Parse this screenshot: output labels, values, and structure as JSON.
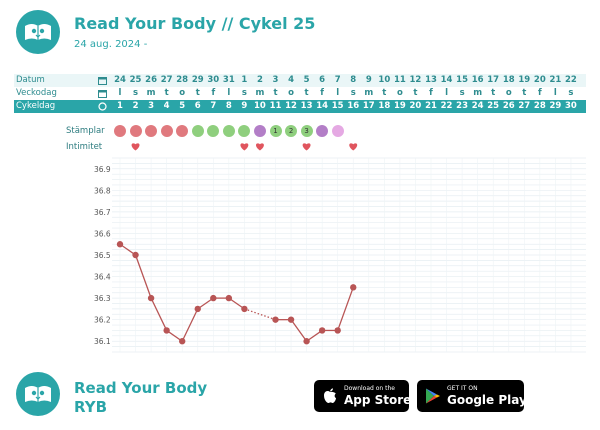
{
  "header": {
    "title": "Read Your Body // Cykel 25",
    "subtitle": "24 aug. 2024 -",
    "logo_icon": "open-book-owl-icon"
  },
  "rows": {
    "datum": {
      "label": "Datum",
      "icon": "calendar-icon",
      "values": [
        "24",
        "25",
        "26",
        "27",
        "28",
        "29",
        "30",
        "31",
        "1",
        "2",
        "3",
        "4",
        "5",
        "6",
        "7",
        "8",
        "9",
        "10",
        "11",
        "12",
        "13",
        "14",
        "15",
        "16",
        "17",
        "18",
        "19",
        "20",
        "21",
        "22"
      ]
    },
    "veckodag": {
      "label": "Veckodag",
      "icon": "calendar-icon",
      "values": [
        "l",
        "s",
        "m",
        "t",
        "o",
        "t",
        "f",
        "l",
        "s",
        "m",
        "t",
        "o",
        "t",
        "f",
        "l",
        "s",
        "m",
        "t",
        "o",
        "t",
        "f",
        "l",
        "s",
        "m",
        "t",
        "o",
        "t",
        "f",
        "l",
        "s"
      ]
    },
    "cykeldag": {
      "label": "Cykeldag",
      "icon": "circle-icon",
      "values": [
        "1",
        "2",
        "3",
        "4",
        "5",
        "6",
        "7",
        "8",
        "9",
        "10",
        "11",
        "12",
        "13",
        "14",
        "15",
        "16",
        "17",
        "18",
        "19",
        "20",
        "21",
        "22",
        "23",
        "24",
        "25",
        "26",
        "27",
        "28",
        "29",
        "30"
      ]
    }
  },
  "stamps": {
    "label": "Stämplar",
    "items": [
      {
        "day": 1,
        "color": "#e0797e",
        "text": ""
      },
      {
        "day": 2,
        "color": "#e0797e",
        "text": ""
      },
      {
        "day": 3,
        "color": "#e0797e",
        "text": ""
      },
      {
        "day": 4,
        "color": "#e0797e",
        "text": ""
      },
      {
        "day": 5,
        "color": "#e0797e",
        "text": ""
      },
      {
        "day": 6,
        "color": "#8fcf7e",
        "text": ""
      },
      {
        "day": 7,
        "color": "#8fcf7e",
        "text": ""
      },
      {
        "day": 8,
        "color": "#8fcf7e",
        "text": ""
      },
      {
        "day": 9,
        "color": "#8fcf7e",
        "text": ""
      },
      {
        "day": 10,
        "color": "#b37ec7",
        "text": ""
      },
      {
        "day": 11,
        "color": "#8fcf7e",
        "text": "1"
      },
      {
        "day": 12,
        "color": "#8fcf7e",
        "text": "2"
      },
      {
        "day": 13,
        "color": "#8fcf7e",
        "text": "3"
      },
      {
        "day": 14,
        "color": "#b37ec7",
        "text": ""
      },
      {
        "day": 15,
        "color": "#e5a9e3",
        "text": ""
      }
    ]
  },
  "intimitet": {
    "label": "Intimitet",
    "icon": "heart-icon",
    "color": "#e0555e",
    "days": [
      2,
      9,
      10,
      13,
      16
    ]
  },
  "chart_data": {
    "type": "line",
    "x": [
      1,
      2,
      3,
      4,
      5,
      6,
      7,
      8,
      9,
      11,
      12,
      13,
      14,
      15,
      16
    ],
    "series": [
      {
        "values": [
          36.55,
          36.5,
          36.3,
          36.15,
          36.1,
          36.25,
          36.3,
          36.3,
          36.25,
          36.2,
          36.2,
          36.1,
          36.15,
          36.15,
          36.35
        ]
      }
    ],
    "dotted_segments": [
      [
        9,
        11
      ]
    ],
    "y_ticks": [
      36.1,
      36.2,
      36.3,
      36.4,
      36.5,
      36.6,
      36.7,
      36.8,
      36.9
    ],
    "ylim": [
      36.05,
      36.95
    ],
    "xlim": [
      1,
      30
    ],
    "grid": true,
    "line_color": "#b85555"
  },
  "footer": {
    "title": "Read Your Body",
    "subtitle": "RYB",
    "logo_icon": "open-book-owl-icon"
  },
  "stores": {
    "apple": {
      "small": "Download on the",
      "big": "App Store",
      "icon": "apple-icon"
    },
    "google": {
      "small": "GET IT ON",
      "big": "Google Play",
      "icon": "google-play-icon"
    }
  }
}
